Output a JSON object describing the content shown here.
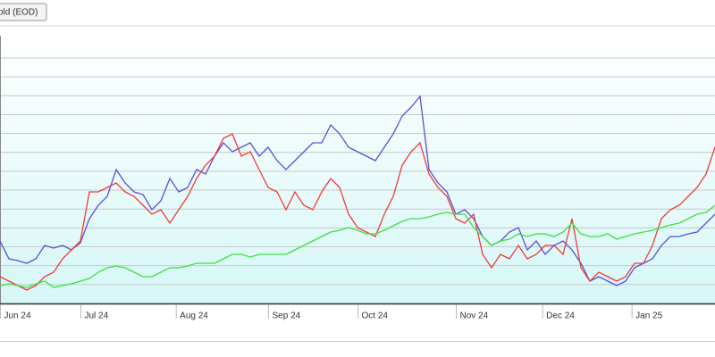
{
  "button": {
    "label": "old (EOD)"
  },
  "chart_data": {
    "type": "line",
    "x": [
      0,
      3,
      6,
      9,
      12,
      15,
      18,
      21,
      24,
      27,
      30,
      33,
      36,
      39,
      42,
      45,
      48,
      51,
      54,
      57,
      60,
      63,
      66,
      69,
      72,
      75,
      78,
      81,
      84,
      87,
      90,
      93,
      96,
      99,
      102,
      105,
      108,
      111,
      114,
      117,
      120,
      123,
      126,
      129,
      132,
      135,
      138,
      141,
      144,
      147,
      150,
      153,
      156,
      159,
      162,
      165,
      168,
      171,
      174,
      177,
      180,
      183,
      186,
      189,
      192,
      195,
      198,
      201,
      204,
      207,
      210,
      213,
      216,
      219,
      222,
      225,
      228,
      231,
      234,
      237,
      240
    ],
    "xlim": [
      0,
      240
    ],
    "xticks": [
      {
        "value": 0,
        "label": "Jun 24"
      },
      {
        "value": 27,
        "label": "Jul 24"
      },
      {
        "value": 59,
        "label": "Aug 24"
      },
      {
        "value": 90,
        "label": "Sep 24"
      },
      {
        "value": 120,
        "label": "Oct 24"
      },
      {
        "value": 153,
        "label": "Nov 24"
      },
      {
        "value": 182,
        "label": "Dec 24"
      },
      {
        "value": 212,
        "label": "Jan 25"
      }
    ],
    "ylim": [
      0,
      275
    ],
    "series": [
      {
        "color": "#5a4fd8",
        "values": [
          70,
          50,
          48,
          45,
          50,
          65,
          62,
          65,
          60,
          68,
          95,
          110,
          120,
          150,
          135,
          125,
          122,
          105,
          115,
          140,
          125,
          130,
          150,
          145,
          165,
          180,
          170,
          175,
          180,
          165,
          175,
          160,
          150,
          160,
          170,
          180,
          180,
          200,
          190,
          175,
          170,
          165,
          160,
          175,
          190,
          210,
          220,
          232,
          150,
          135,
          125,
          100,
          105,
          95,
          75,
          65,
          70,
          80,
          85,
          60,
          70,
          55,
          65,
          70,
          60,
          45,
          25,
          30,
          25,
          20,
          25,
          40,
          45,
          50,
          65,
          75,
          75,
          78,
          80,
          90,
          100
        ]
      },
      {
        "color": "#f03a3a",
        "values": [
          30,
          25,
          20,
          15,
          20,
          30,
          35,
          50,
          60,
          70,
          125,
          125,
          130,
          135,
          125,
          120,
          110,
          100,
          105,
          90,
          105,
          120,
          140,
          155,
          165,
          185,
          190,
          165,
          170,
          150,
          130,
          125,
          105,
          125,
          110,
          105,
          125,
          140,
          130,
          100,
          85,
          80,
          75,
          100,
          120,
          155,
          170,
          180,
          145,
          130,
          120,
          95,
          90,
          100,
          55,
          40,
          55,
          50,
          65,
          50,
          55,
          65,
          65,
          55,
          95,
          40,
          25,
          35,
          30,
          25,
          30,
          45,
          45,
          65,
          95,
          105,
          110,
          120,
          130,
          145,
          175
        ]
      },
      {
        "color": "#3ee03e",
        "values": [
          20,
          22,
          20,
          18,
          22,
          25,
          18,
          20,
          22,
          25,
          28,
          35,
          40,
          42,
          40,
          35,
          30,
          30,
          35,
          40,
          40,
          42,
          45,
          45,
          45,
          50,
          55,
          55,
          52,
          55,
          55,
          55,
          55,
          60,
          65,
          70,
          75,
          80,
          82,
          85,
          82,
          78,
          78,
          82,
          87,
          92,
          95,
          95,
          97,
          100,
          102,
          100,
          100,
          85,
          75,
          65,
          70,
          72,
          78,
          75,
          78,
          78,
          75,
          80,
          90,
          78,
          75,
          75,
          78,
          72,
          75,
          78,
          80,
          82,
          85,
          88,
          90,
          95,
          100,
          102,
          110
        ]
      }
    ]
  }
}
